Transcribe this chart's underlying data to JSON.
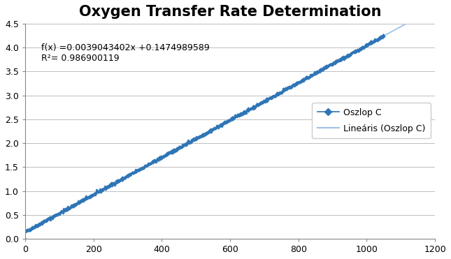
{
  "title": "Oxygen Transfer Rate Determination",
  "title_fontsize": 15,
  "title_fontweight": "bold",
  "equation": "f(x) =0.0039043402x +0.1474989589",
  "r_squared": "R²= 0.986900119",
  "slope": 0.0039043402,
  "intercept": 0.1474989589,
  "x_min": 0,
  "x_max": 1200,
  "y_min": 0,
  "y_max": 4.5,
  "x_ticks": [
    0,
    200,
    400,
    600,
    800,
    1000,
    1200
  ],
  "y_ticks": [
    0,
    0.5,
    1,
    1.5,
    2,
    2.5,
    3,
    3.5,
    4,
    4.5
  ],
  "data_color": "#2e75b6",
  "line_color": "#9dc3e6",
  "legend_data_label": "Oszlop C",
  "legend_line_label": "Lineáris (Oszlop C)",
  "annotation_fontsize": 9,
  "background_color": "#ffffff",
  "plot_bg_color": "#ffffff",
  "grid_color": "#bfbfbf",
  "n_points": 1050,
  "noise_std": 0.015,
  "scatter_seed": 42
}
